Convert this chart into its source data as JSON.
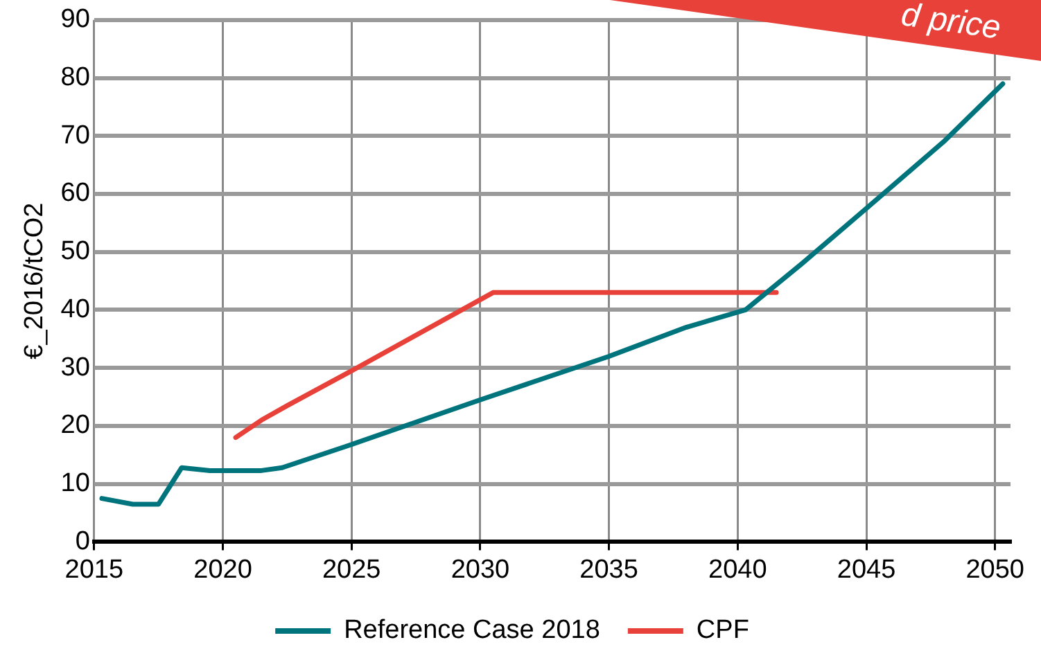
{
  "chart_data": {
    "type": "line",
    "ylabel": "€_2016/tCO2",
    "xlim": [
      2015,
      2050.6
    ],
    "xticks": [
      2015,
      2020,
      2025,
      2030,
      2035,
      2040,
      2045,
      2050
    ],
    "ylim": [
      0,
      90
    ],
    "yticks": [
      0,
      10,
      20,
      30,
      40,
      50,
      60,
      70,
      80,
      90
    ],
    "grid": true,
    "legend": "bottom",
    "marker": "none",
    "annotations": [
      "d price"
    ],
    "series": [
      {
        "name": "Reference Case 2018",
        "color": "#00747c",
        "x": [
          2015.3,
          2016.5,
          2017.5,
          2018.4,
          2019.5,
          2021.5,
          2022.3,
          2025,
          2030,
          2035,
          2038,
          2040.3,
          2042.5,
          2045,
          2048,
          2050.3
        ],
        "values": [
          7.5,
          6.5,
          6.5,
          12.8,
          12.3,
          12.3,
          12.8,
          16.8,
          24.5,
          32,
          37,
          40,
          48,
          57.5,
          69,
          79
        ]
      },
      {
        "name": "CPF",
        "color": "#e8413a",
        "x": [
          2020.5,
          2021.5,
          2022.5,
          2025,
          2030.5,
          2041.5
        ],
        "values": [
          18,
          21,
          23.5,
          29.5,
          43,
          43
        ]
      }
    ]
  }
}
